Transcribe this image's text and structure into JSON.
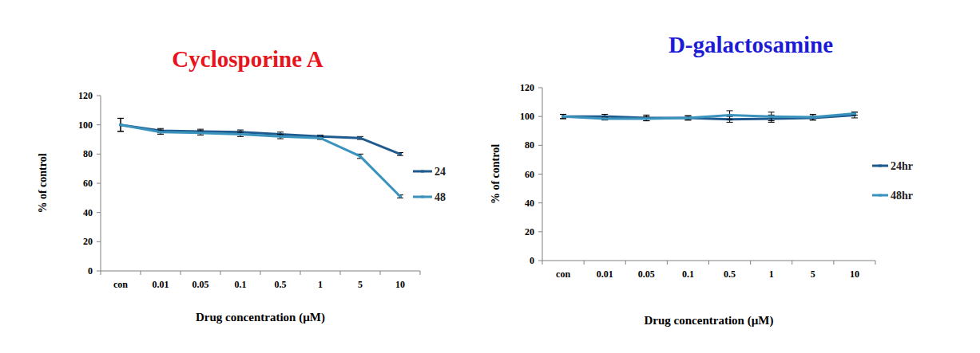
{
  "chart_data": [
    {
      "type": "line",
      "title": "Cyclosporine A",
      "title_color": "#e8141c",
      "x_label": "Drug concentration (µM)",
      "y_label": "% of control",
      "categories": [
        "con",
        "0.01",
        "0.05",
        "0.1",
        "0.5",
        "1",
        "5",
        "10"
      ],
      "series": [
        {
          "name": "24",
          "color": "#1f5a8f",
          "values": [
            100,
            96,
            95.5,
            95,
            93.5,
            92,
            91,
            80
          ],
          "errors": [
            4.5,
            1.5,
            1.5,
            1.5,
            1.5,
            1,
            1,
            1
          ]
        },
        {
          "name": "48",
          "color": "#3a93bd",
          "values": [
            100,
            95,
            94.5,
            93.5,
            92,
            91,
            78.5,
            51
          ],
          "errors": [
            4.5,
            1.5,
            1.5,
            1.5,
            1.5,
            1,
            1.5,
            1
          ]
        }
      ],
      "ylim": [
        0,
        120
      ],
      "yticks": [
        0,
        20,
        40,
        60,
        80,
        100,
        120
      ],
      "legend": "right"
    },
    {
      "type": "line",
      "title": "D-galactosamine",
      "title_color": "#1c1cd4",
      "x_label": "Drug concentration (µM)",
      "y_label": "% of control",
      "categories": [
        "con",
        "0.01",
        "0.05",
        "0.1",
        "0.5",
        "1",
        "5",
        "10"
      ],
      "series": [
        {
          "name": "24hr",
          "color": "#1f5a8f",
          "values": [
            100,
            100,
            99,
            99,
            98,
            98.5,
            99,
            101
          ],
          "errors": [
            1.5,
            1.5,
            2,
            1.5,
            2,
            2.5,
            1.5,
            2
          ]
        },
        {
          "name": "48hr",
          "color": "#3a93bd",
          "values": [
            100,
            98.5,
            98.5,
            99,
            101,
            100,
            99.5,
            102
          ],
          "errors": [
            1.5,
            1,
            1.5,
            1.5,
            3,
            3,
            2,
            1
          ]
        }
      ],
      "ylim": [
        0,
        120
      ],
      "yticks": [
        0,
        20,
        40,
        60,
        80,
        100,
        120
      ],
      "legend": "right"
    }
  ]
}
